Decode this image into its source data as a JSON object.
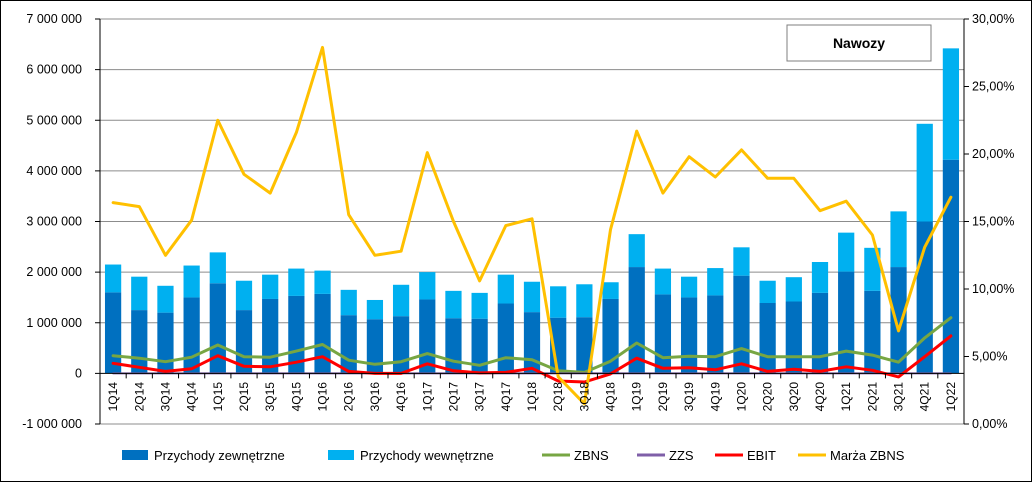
{
  "chart_data": {
    "type": "bar",
    "title": "Nawozy",
    "categories": [
      "1Q14",
      "2Q14",
      "3Q14",
      "4Q14",
      "1Q15",
      "2Q15",
      "3Q15",
      "4Q15",
      "1Q16",
      "2Q16",
      "3Q16",
      "4Q16",
      "1Q17",
      "2Q17",
      "3Q17",
      "4Q17",
      "1Q18",
      "2Q18",
      "3Q18",
      "4Q18",
      "1Q19",
      "2Q19",
      "3Q19",
      "4Q19",
      "1Q20",
      "2Q20",
      "3Q20",
      "4Q20",
      "1Q21",
      "2Q21",
      "3Q21",
      "4Q21",
      "1Q22"
    ],
    "stacked": true,
    "series": [
      {
        "name": "Przychody zewnętrzne",
        "kind": "bar",
        "axis": "left",
        "color": "#0070C0",
        "values": [
          1600000,
          1250000,
          1200000,
          1500000,
          1780000,
          1250000,
          1470000,
          1530000,
          1570000,
          1150000,
          1070000,
          1130000,
          1460000,
          1090000,
          1080000,
          1380000,
          1210000,
          1100000,
          1110000,
          1470000,
          2100000,
          1560000,
          1500000,
          1540000,
          1930000,
          1390000,
          1420000,
          1590000,
          2010000,
          1630000,
          2100000,
          3000000,
          4220000
        ]
      },
      {
        "name": "Przychody wewnętrzne",
        "kind": "bar",
        "axis": "left",
        "color": "#00B0F0",
        "values": [
          550000,
          660000,
          530000,
          630000,
          610000,
          580000,
          480000,
          540000,
          460000,
          500000,
          380000,
          620000,
          540000,
          540000,
          510000,
          570000,
          600000,
          620000,
          650000,
          330000,
          650000,
          510000,
          410000,
          540000,
          560000,
          440000,
          480000,
          610000,
          770000,
          850000,
          1100000,
          1930000,
          2200000
        ]
      },
      {
        "name": "ZBNS",
        "kind": "line",
        "axis": "left",
        "color": "#77A643",
        "values": [
          350000,
          300000,
          230000,
          320000,
          560000,
          330000,
          320000,
          440000,
          570000,
          260000,
          180000,
          230000,
          390000,
          240000,
          160000,
          310000,
          270000,
          50000,
          20000,
          240000,
          600000,
          310000,
          340000,
          330000,
          490000,
          330000,
          330000,
          330000,
          440000,
          360000,
          220000,
          700000,
          1100000
        ]
      },
      {
        "name": "ZZS",
        "kind": "line",
        "axis": "left",
        "color": "#7F5FA8",
        "values": [
          0,
          0,
          0,
          0,
          0,
          0,
          0,
          0,
          0,
          0,
          0,
          0,
          0,
          0,
          0,
          0,
          0,
          0,
          0,
          0,
          0,
          0,
          0,
          0,
          0,
          0,
          0,
          0,
          0,
          0,
          0,
          0,
          0
        ]
      },
      {
        "name": "EBIT",
        "kind": "line",
        "axis": "left",
        "color": "#FF0000",
        "values": [
          200000,
          120000,
          40000,
          90000,
          350000,
          140000,
          130000,
          220000,
          330000,
          40000,
          0,
          0,
          190000,
          50000,
          10000,
          20000,
          100000,
          -150000,
          -170000,
          -10000,
          300000,
          100000,
          110000,
          70000,
          190000,
          40000,
          80000,
          40000,
          130000,
          60000,
          -70000,
          330000,
          740000
        ]
      },
      {
        "name": "Marża ZBNS",
        "kind": "line",
        "axis": "right",
        "color": "#FFC000",
        "values": [
          16.4,
          16.1,
          12.5,
          15.1,
          22.5,
          18.5,
          17.1,
          21.6,
          27.9,
          15.5,
          12.5,
          12.8,
          20.1,
          15.0,
          10.6,
          14.7,
          15.2,
          3.5,
          1.5,
          14.4,
          21.7,
          17.1,
          19.8,
          18.3,
          20.3,
          18.2,
          18.2,
          15.8,
          16.5,
          14.0,
          6.9,
          13.1,
          16.8
        ]
      }
    ],
    "y_left": {
      "min": -1000000,
      "max": 7000000,
      "step": 1000000,
      "tick_labels": [
        "-1 000 000",
        "0",
        "1 000 000",
        "2 000 000",
        "3 000 000",
        "4 000 000",
        "5 000 000",
        "6 000 000",
        "7 000 000"
      ]
    },
    "y_right": {
      "min": 0,
      "max": 30,
      "step": 5,
      "tick_labels": [
        "0,00%",
        "5,00%",
        "10,00%",
        "15,00%",
        "20,00%",
        "25,00%",
        "30,00%"
      ]
    },
    "grid": "horizontal",
    "legend_position": "bottom"
  }
}
